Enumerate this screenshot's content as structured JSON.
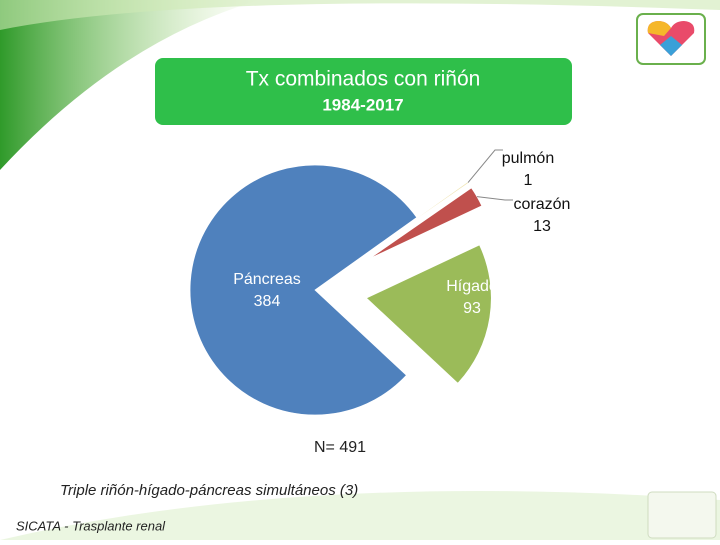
{
  "chart_data": {
    "type": "pie",
    "title": "Tx combinados con riñón",
    "subtitle": "1984-2017",
    "categories": [
      "Páncreas",
      "pulmón",
      "corazón",
      "Hígado"
    ],
    "values": [
      384,
      1,
      13,
      93
    ],
    "colors": [
      "#4f81bd",
      "#f0e6b8",
      "#c0504d",
      "#9bbb59"
    ],
    "total_label": "N= 491",
    "footnote": "Triple riñón-hígado-páncreas simultáneos (3)",
    "source": "SICATA - Trasplante renal"
  }
}
